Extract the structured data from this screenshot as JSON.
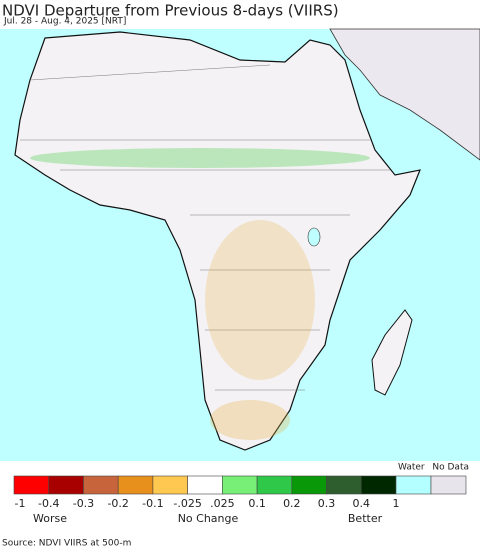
{
  "header": {
    "title": "NDVI Departure from Previous 8-days (VIIRS)",
    "subtitle": "Jul. 28 - Aug. 4, 2025 [NRT]"
  },
  "legend": {
    "colors": [
      "#ff0000",
      "#a80000",
      "#c8643c",
      "#e8901c",
      "#ffc850",
      "#ffffff",
      "#78f078",
      "#30c848",
      "#089808",
      "#2e5e2e",
      "#002800"
    ],
    "ticks": [
      "-1",
      "-0.4",
      "-0.3",
      "-0.2",
      "-0.1",
      "-.025",
      ".025",
      "0.1",
      "0.2",
      "0.3",
      "0.4",
      "1"
    ],
    "water_label": "Water",
    "water_color": "#b4ffff",
    "nodata_label": "No Data",
    "nodata_color": "#e8e4ec",
    "worse": "Worse",
    "no_change": "No Change",
    "better": "Better"
  },
  "footer": {
    "source": "Source: NDVI VIIRS at 500-m"
  }
}
